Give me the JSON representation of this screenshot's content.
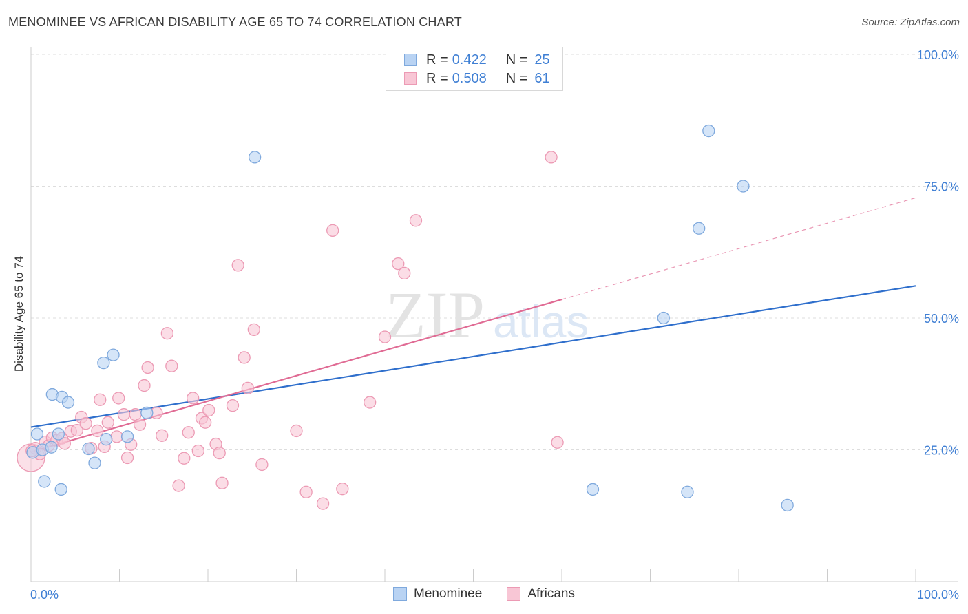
{
  "title": "MENOMINEE VS AFRICAN DISABILITY AGE 65 TO 74 CORRELATION CHART",
  "source": "Source: ZipAtlas.com",
  "watermark": {
    "zip": "ZIP",
    "atlas": "atlas"
  },
  "colors": {
    "blue_fill": "#b9d3f3",
    "blue_stroke": "#7fa9dd",
    "blue_line": "#2f6fcc",
    "pink_fill": "#f8c6d5",
    "pink_stroke": "#ec9ab4",
    "pink_line": "#e06b94",
    "axis_label": "#3f7fd4",
    "grid": "#dddddd"
  },
  "legend": {
    "rows": [
      {
        "r_label": "R =",
        "r_value": "0.422",
        "n_label": "N =",
        "n_value": "25",
        "series": "Menominee"
      },
      {
        "r_label": "R =",
        "r_value": "0.508",
        "n_label": "N =",
        "n_value": "61",
        "series": "Africans"
      }
    ]
  },
  "bottom_legend": {
    "menominee": "Menominee",
    "africans": "Africans"
  },
  "chart_data": {
    "type": "scatter",
    "title": "MENOMINEE VS AFRICAN DISABILITY AGE 65 TO 74 CORRELATION CHART",
    "xlabel": "",
    "ylabel": "Disability Age 65 to 74",
    "xlim": [
      0,
      100
    ],
    "ylim": [
      0,
      100
    ],
    "x_tick_labels": [
      "0.0%",
      "100.0%"
    ],
    "y_tick_labels": [
      "25.0%",
      "50.0%",
      "75.0%",
      "100.0%"
    ],
    "y_tick_values": [
      25,
      50,
      75,
      100
    ],
    "series": [
      {
        "name": "Menominee",
        "points": [
          [
            0.2,
            24.5
          ],
          [
            0.7,
            28.0
          ],
          [
            1.3,
            25.0
          ],
          [
            1.5,
            19.0
          ],
          [
            2.3,
            25.5
          ],
          [
            2.4,
            35.5
          ],
          [
            3.1,
            28.0
          ],
          [
            3.4,
            17.5
          ],
          [
            3.5,
            35.0
          ],
          [
            4.2,
            34.0
          ],
          [
            6.5,
            25.2
          ],
          [
            7.2,
            22.5
          ],
          [
            8.2,
            41.5
          ],
          [
            8.5,
            27.0
          ],
          [
            9.3,
            43.0
          ],
          [
            10.9,
            27.5
          ],
          [
            13.1,
            32.0
          ],
          [
            25.3,
            80.5
          ],
          [
            63.5,
            17.5
          ],
          [
            71.5,
            50.0
          ],
          [
            74.2,
            17.0
          ],
          [
            75.5,
            67.0
          ],
          [
            76.6,
            85.5
          ],
          [
            80.5,
            75.0
          ],
          [
            85.5,
            14.5
          ]
        ],
        "trend": {
          "x0": 0,
          "y0": 29.3,
          "x1": 100,
          "y1": 56.1,
          "dashed_from": null
        }
      },
      {
        "name": "Africans",
        "points": [
          [
            0.0,
            23.5
          ],
          [
            0.5,
            25.3
          ],
          [
            1.0,
            24.2
          ],
          [
            1.6,
            26.5
          ],
          [
            2.0,
            25.8
          ],
          [
            2.4,
            27.3
          ],
          [
            2.9,
            26.8
          ],
          [
            3.5,
            27.2
          ],
          [
            3.8,
            26.2
          ],
          [
            4.5,
            28.5
          ],
          [
            5.2,
            28.7
          ],
          [
            5.7,
            31.2
          ],
          [
            6.2,
            30.0
          ],
          [
            6.8,
            25.3
          ],
          [
            7.5,
            28.6
          ],
          [
            7.8,
            34.5
          ],
          [
            8.3,
            25.6
          ],
          [
            8.7,
            30.2
          ],
          [
            9.7,
            27.5
          ],
          [
            9.9,
            34.8
          ],
          [
            10.5,
            31.7
          ],
          [
            10.9,
            23.5
          ],
          [
            11.3,
            26.0
          ],
          [
            11.8,
            31.7
          ],
          [
            12.3,
            29.8
          ],
          [
            12.8,
            37.2
          ],
          [
            13.2,
            40.6
          ],
          [
            14.2,
            32.0
          ],
          [
            14.8,
            27.7
          ],
          [
            15.4,
            47.1
          ],
          [
            15.9,
            40.9
          ],
          [
            16.7,
            18.2
          ],
          [
            17.3,
            23.4
          ],
          [
            17.8,
            28.3
          ],
          [
            18.3,
            34.8
          ],
          [
            18.9,
            24.8
          ],
          [
            19.3,
            31.0
          ],
          [
            19.7,
            30.2
          ],
          [
            20.1,
            32.5
          ],
          [
            20.9,
            26.1
          ],
          [
            21.3,
            24.4
          ],
          [
            21.6,
            18.7
          ],
          [
            22.8,
            33.4
          ],
          [
            23.4,
            60.0
          ],
          [
            24.1,
            42.5
          ],
          [
            24.5,
            36.7
          ],
          [
            25.2,
            47.8
          ],
          [
            26.1,
            22.2
          ],
          [
            30.0,
            28.6
          ],
          [
            31.1,
            17.0
          ],
          [
            33.0,
            14.8
          ],
          [
            34.1,
            66.6
          ],
          [
            35.2,
            17.6
          ],
          [
            38.3,
            34.0
          ],
          [
            40.0,
            46.4
          ],
          [
            41.5,
            60.3
          ],
          [
            42.2,
            58.5
          ],
          [
            43.5,
            68.5
          ],
          [
            58.8,
            80.5
          ],
          [
            59.5,
            26.4
          ],
          [
            0.1,
            24.8
          ]
        ],
        "trend": {
          "x0": 0,
          "y0": 24.6,
          "x1": 100,
          "y1": 72.8,
          "dashed_from": 60
        }
      }
    ]
  }
}
